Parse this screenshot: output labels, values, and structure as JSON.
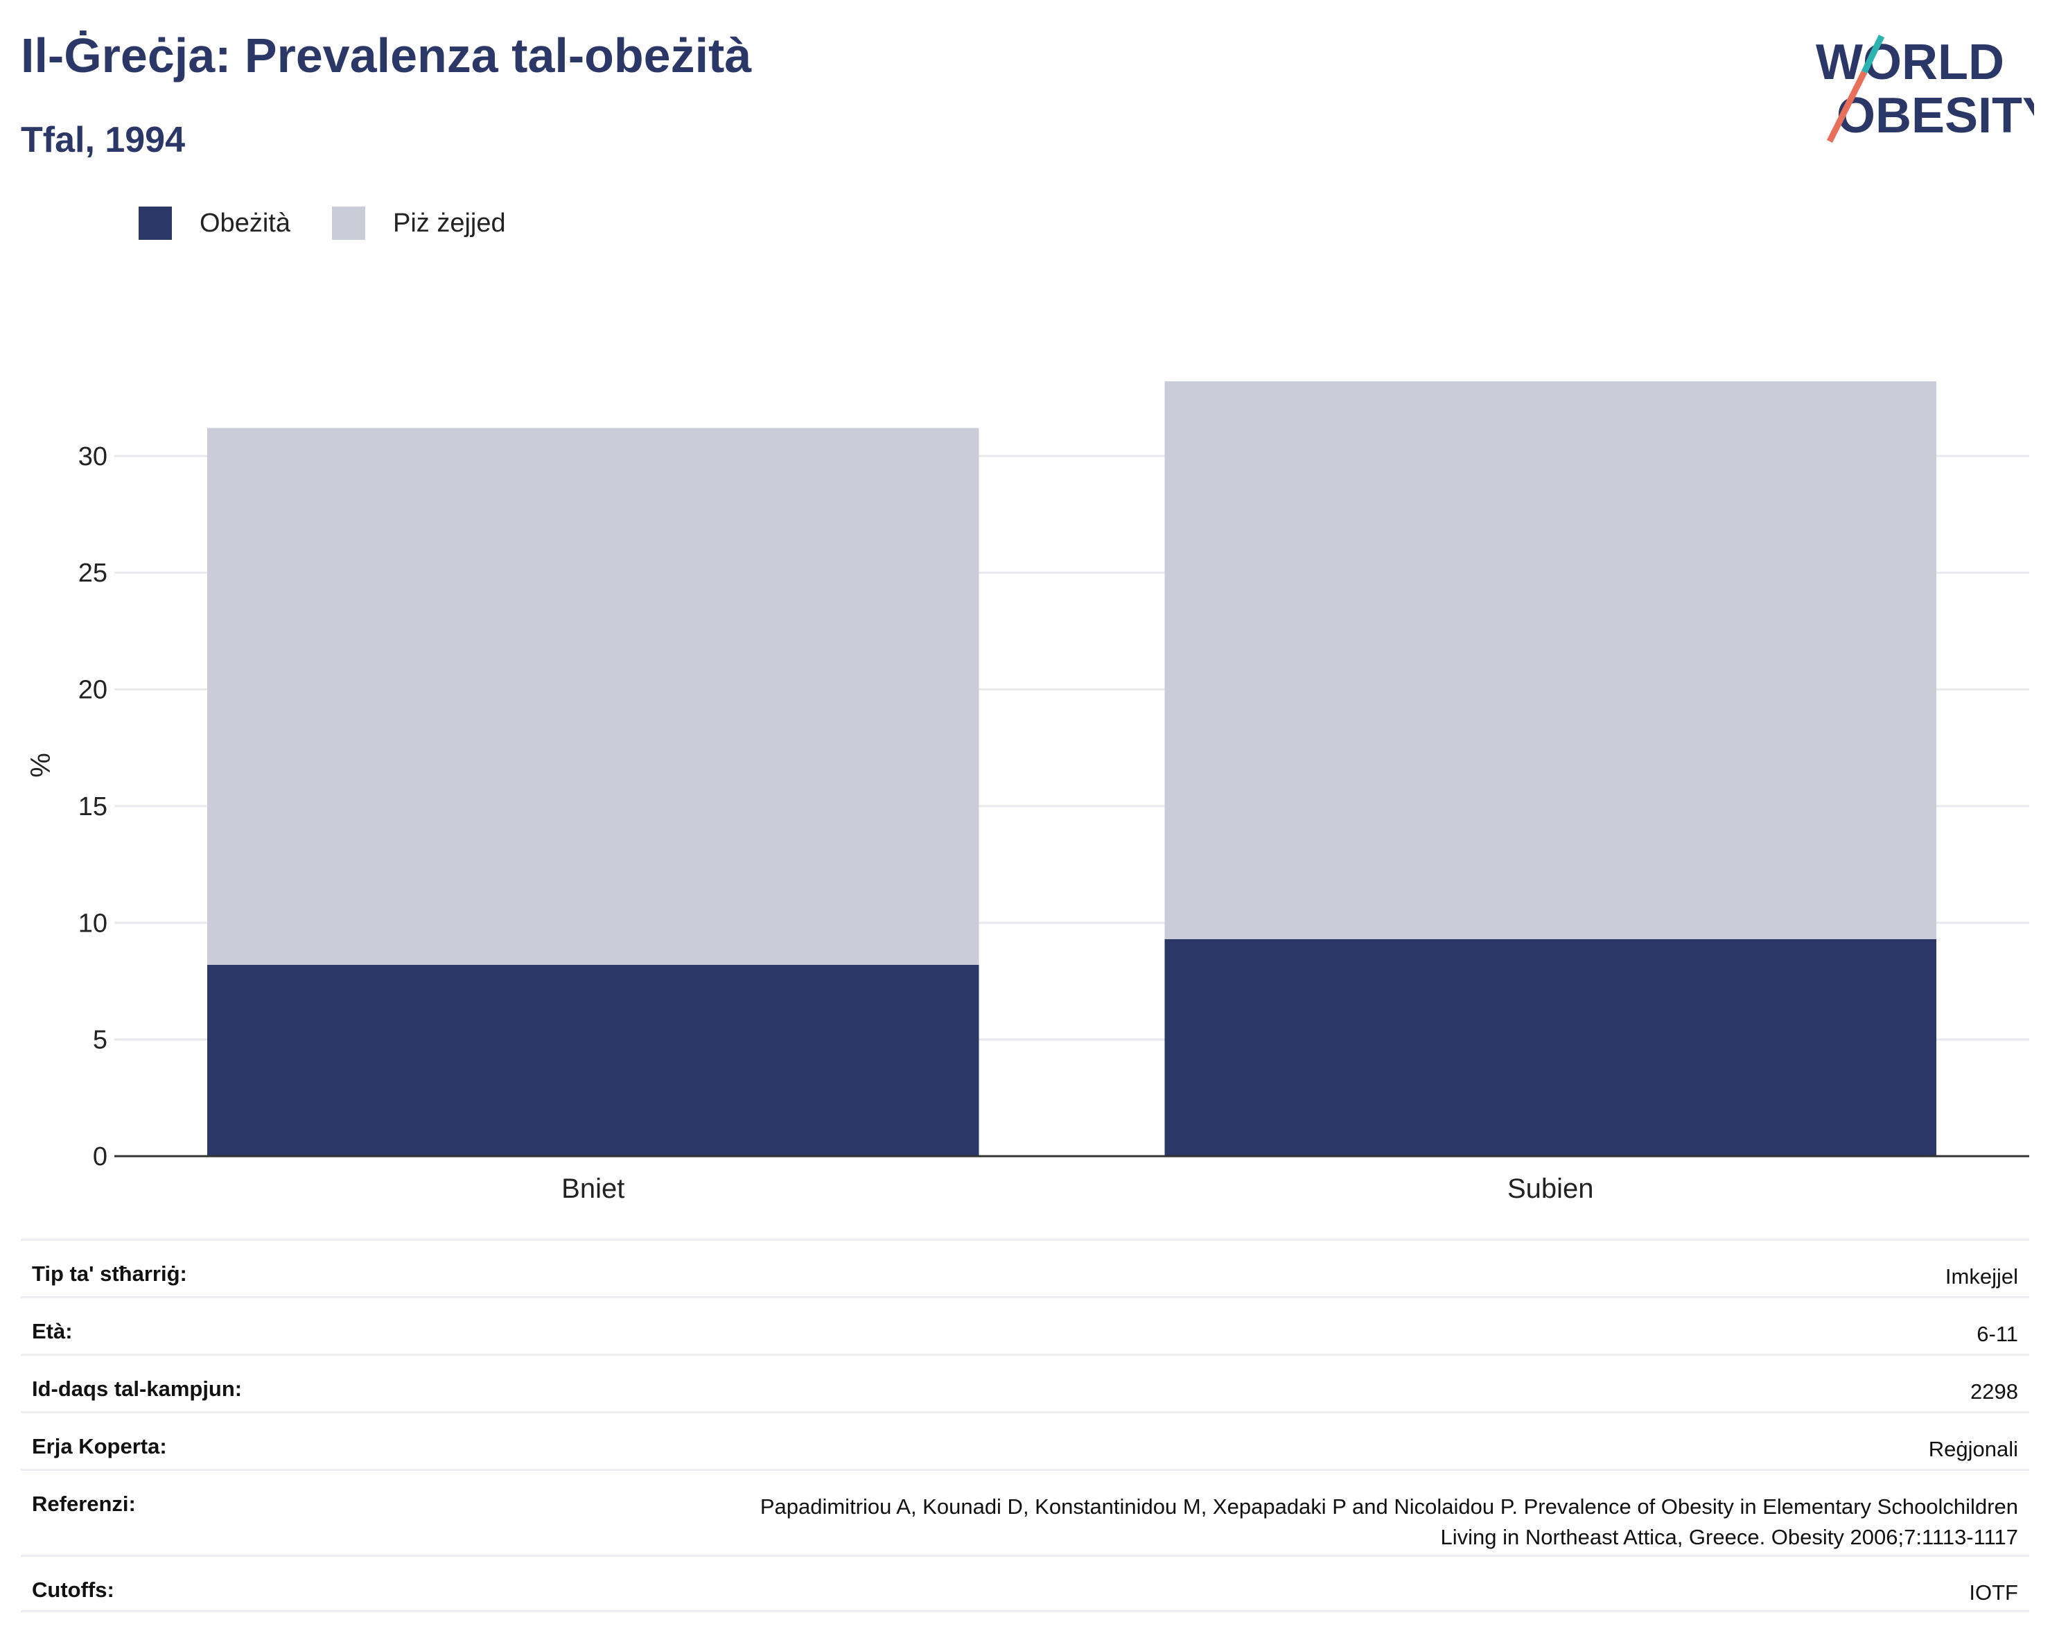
{
  "header": {
    "title": "Il-Ġreċja: Prevalenza tal-obeżità",
    "subtitle": "Tfal, 1994"
  },
  "logo": {
    "line1": "WORLD",
    "line2": "OBESITY",
    "accent_teal": "#2bb3b1",
    "accent_coral": "#e8705a"
  },
  "colors": {
    "obese": "#2b3766",
    "overweight": "#cacdd8",
    "text": "#2b3766"
  },
  "chart_data": {
    "type": "bar",
    "stacked": true,
    "categories": [
      "Bniet",
      "Subien"
    ],
    "series": [
      {
        "name": "Obeżità",
        "values": [
          8.2,
          9.3
        ]
      },
      {
        "name": "Piż żejjed",
        "values": [
          23.0,
          23.9
        ]
      }
    ],
    "ylabel": "%",
    "ylim": [
      0,
      33.5
    ],
    "yticks": [
      0,
      5,
      10,
      15,
      20,
      25,
      30
    ],
    "grid": true,
    "legend": "top-left"
  },
  "info": [
    {
      "label": "Tip ta' stħarriġ:",
      "value": "Imkejjel"
    },
    {
      "label": "Età:",
      "value": "6-11"
    },
    {
      "label": "Id-daqs tal-kampjun:",
      "value": "2298"
    },
    {
      "label": "Erja Koperta:",
      "value": "Reġjonali"
    },
    {
      "label": "Referenzi:",
      "value": "Papadimitriou A, Kounadi D, Konstantinidou M, Xepapadaki P and Nicolaidou P. Prevalence of Obesity in Elementary Schoolchildren",
      "value2": "Living in Northeast Attica, Greece. Obesity 2006;7:1113-1117"
    },
    {
      "label": "Cutoffs:",
      "value": "IOTF"
    }
  ]
}
